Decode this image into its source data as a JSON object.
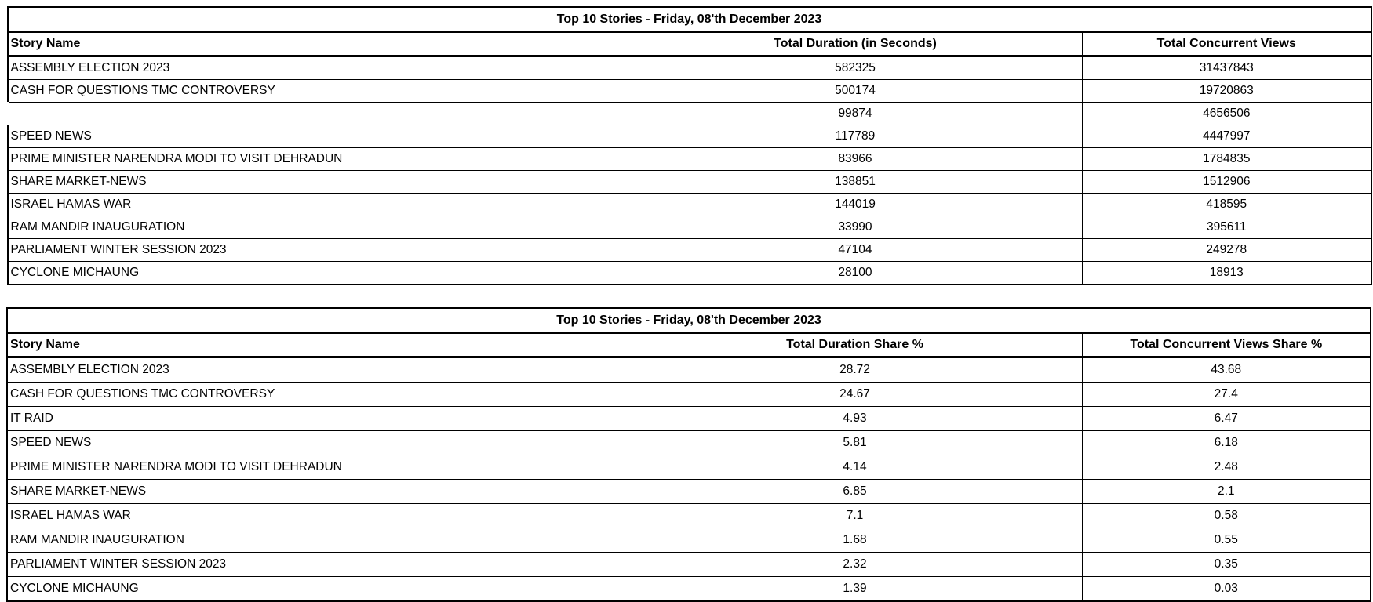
{
  "page": {
    "background_color": "#ffffff",
    "text_color": "#000000",
    "border_color": "#000000"
  },
  "chart_data": [
    {
      "type": "table",
      "title": "Top 10 Stories - Friday, 08'th December 2023",
      "columns": [
        "Story Name",
        "Total Duration (in Seconds)",
        "Total Concurrent Views"
      ],
      "rows": [
        [
          "ASSEMBLY ELECTION 2023",
          582325,
          31437843
        ],
        [
          "CASH FOR QUESTIONS TMC CONTROVERSY",
          500174,
          19720863
        ],
        [
          "",
          99874,
          4656506
        ],
        [
          "SPEED NEWS",
          117789,
          4447997
        ],
        [
          "PRIME MINISTER NARENDRA MODI TO VISIT DEHRADUN",
          83966,
          1784835
        ],
        [
          "SHARE MARKET-NEWS",
          138851,
          1512906
        ],
        [
          "ISRAEL HAMAS WAR",
          144019,
          418595
        ],
        [
          "RAM MANDIR INAUGURATION",
          33990,
          395611
        ],
        [
          "PARLIAMENT WINTER SESSION 2023",
          47104,
          249278
        ],
        [
          "CYCLONE MICHAUNG",
          28100,
          18913
        ]
      ]
    },
    {
      "type": "table",
      "title": "Top 10 Stories - Friday, 08'th December 2023",
      "columns": [
        "Story Name",
        "Total Duration Share %",
        "Total Concurrent Views Share %"
      ],
      "rows": [
        [
          "ASSEMBLY ELECTION 2023",
          28.72,
          43.68
        ],
        [
          "CASH FOR QUESTIONS TMC CONTROVERSY",
          24.67,
          27.4
        ],
        [
          "IT RAID",
          4.93,
          6.47
        ],
        [
          "SPEED NEWS",
          5.81,
          6.18
        ],
        [
          "PRIME MINISTER NARENDRA MODI TO VISIT DEHRADUN",
          4.14,
          2.48
        ],
        [
          "SHARE MARKET-NEWS",
          6.85,
          2.1
        ],
        [
          "ISRAEL HAMAS WAR",
          7.1,
          0.58
        ],
        [
          "RAM MANDIR INAUGURATION",
          1.68,
          0.55
        ],
        [
          "PARLIAMENT WINTER SESSION 2023",
          2.32,
          0.35
        ],
        [
          "CYCLONE MICHAUNG",
          1.39,
          0.03
        ]
      ]
    }
  ]
}
